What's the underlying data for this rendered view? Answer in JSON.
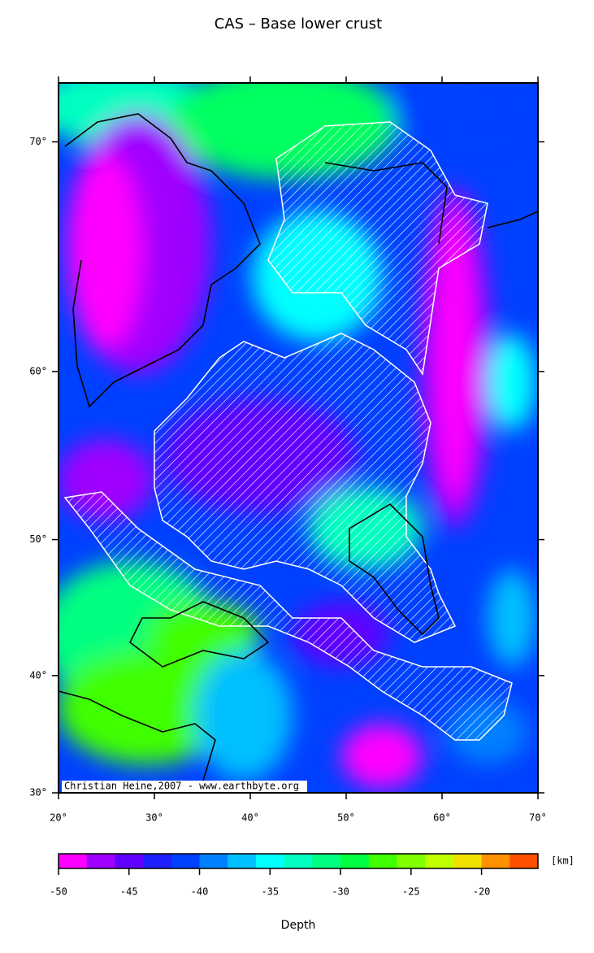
{
  "map": {
    "title": "CAS – Base lower crust",
    "projection": "mercator",
    "xlim": [
      20,
      70
    ],
    "ylim": [
      30,
      72
    ],
    "xticks": [
      {
        "value": 20,
        "label": "20°"
      },
      {
        "value": 30,
        "label": "30°"
      },
      {
        "value": 40,
        "label": "40°"
      },
      {
        "value": 50,
        "label": "50°"
      },
      {
        "value": 60,
        "label": "60°"
      },
      {
        "value": 70,
        "label": "70°"
      }
    ],
    "yticks": [
      {
        "value": 30,
        "label": "30°"
      },
      {
        "value": 40,
        "label": "40°"
      },
      {
        "value": 50,
        "label": "50°"
      },
      {
        "value": 60,
        "label": "60°"
      },
      {
        "value": 70,
        "label": "70°"
      }
    ],
    "credit": "Christian Heine,2007 - www.earthbyte.org",
    "colorbar": {
      "lim": [
        -50,
        -16
      ],
      "ticks": [
        -50,
        -45,
        -40,
        -35,
        -30,
        -25,
        -20
      ],
      "colors": [
        "#ff00ff",
        "#a000ff",
        "#6000ff",
        "#2020ff",
        "#0040ff",
        "#0080ff",
        "#00c0ff",
        "#00ffff",
        "#00ffc0",
        "#00ff80",
        "#00ff40",
        "#40ff00",
        "#80ff00",
        "#c0ff00",
        "#f0e000",
        "#ff9000",
        "#ff5000"
      ],
      "unit": "[km]",
      "label": "Depth"
    }
  }
}
